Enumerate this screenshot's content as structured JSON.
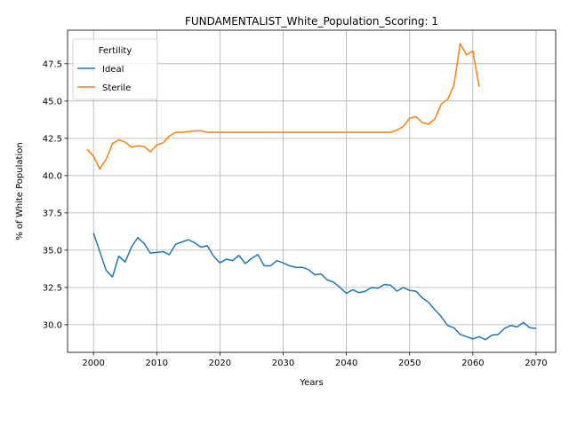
{
  "chart_data": {
    "type": "line",
    "title": "FUNDAMENTALIST_White_Population_Scoring: 1",
    "xlabel": "Years",
    "ylabel": "% of White Population",
    "xlim": [
      1995.9,
      2073.1
    ],
    "ylim": [
      28.15,
      49.75
    ],
    "xticks": [
      2000,
      2010,
      2020,
      2030,
      2040,
      2050,
      2060,
      2070
    ],
    "yticks": [
      30.0,
      32.5,
      35.0,
      37.5,
      40.0,
      42.5,
      45.0,
      47.5
    ],
    "grid": true,
    "legend": {
      "title": "Fertility",
      "position": "top-left"
    },
    "series": [
      {
        "name": "Ideal",
        "color": "#1f77b4",
        "x": [
          2000,
          2001,
          2002,
          2003,
          2004,
          2005,
          2006,
          2007,
          2008,
          2009,
          2010,
          2011,
          2012,
          2013,
          2014,
          2015,
          2016,
          2017,
          2018,
          2019,
          2020,
          2021,
          2022,
          2023,
          2024,
          2025,
          2026,
          2027,
          2028,
          2029,
          2030,
          2031,
          2032,
          2033,
          2034,
          2035,
          2036,
          2037,
          2038,
          2039,
          2040,
          2041,
          2042,
          2043,
          2044,
          2045,
          2046,
          2047,
          2048,
          2049,
          2050,
          2051,
          2052,
          2053,
          2054,
          2055,
          2056,
          2057,
          2058,
          2059,
          2060,
          2061,
          2062,
          2063,
          2064,
          2065,
          2066,
          2067,
          2068,
          2069,
          2070
        ],
        "values": [
          36.15,
          34.9,
          33.65,
          33.2,
          34.6,
          34.2,
          35.2,
          35.85,
          35.45,
          34.8,
          34.85,
          34.9,
          34.7,
          35.4,
          35.55,
          35.7,
          35.5,
          35.2,
          35.3,
          34.6,
          34.15,
          34.4,
          34.3,
          34.65,
          34.1,
          34.45,
          34.7,
          33.95,
          33.95,
          34.3,
          34.15,
          33.95,
          33.85,
          33.85,
          33.7,
          33.35,
          33.4,
          33.0,
          32.85,
          32.5,
          32.1,
          32.35,
          32.15,
          32.25,
          32.5,
          32.45,
          32.7,
          32.65,
          32.25,
          32.5,
          32.3,
          32.25,
          31.8,
          31.5,
          31.0,
          30.55,
          29.95,
          29.8,
          29.35,
          29.2,
          29.05,
          29.2,
          29.0,
          29.3,
          29.35,
          29.75,
          29.95,
          29.85,
          30.15,
          29.8,
          29.75
        ]
      },
      {
        "name": "Sterile",
        "color": "#ff7f0e",
        "x": [
          1999,
          2000,
          2001,
          2002,
          2003,
          2004,
          2005,
          2006,
          2007,
          2008,
          2009,
          2010,
          2011,
          2012,
          2013,
          2014,
          2015,
          2016,
          2017,
          2018,
          2019,
          2020,
          2021,
          2022,
          2023,
          2024,
          2025,
          2026,
          2027,
          2028,
          2029,
          2030,
          2031,
          2032,
          2033,
          2034,
          2035,
          2036,
          2037,
          2038,
          2039,
          2040,
          2041,
          2042,
          2043,
          2044,
          2045,
          2046,
          2047,
          2048,
          2049,
          2050,
          2051,
          2052,
          2053,
          2054,
          2055,
          2056,
          2057,
          2058,
          2059,
          2060,
          2061
        ],
        "values": [
          41.75,
          41.3,
          40.45,
          41.1,
          42.15,
          42.4,
          42.25,
          41.9,
          42.0,
          41.95,
          41.6,
          42.05,
          42.2,
          42.65,
          42.9,
          42.9,
          42.95,
          43.0,
          43.0,
          42.9,
          42.9,
          42.9,
          42.9,
          42.9,
          42.9,
          42.9,
          42.9,
          42.9,
          42.9,
          42.9,
          42.9,
          42.9,
          42.9,
          42.9,
          42.9,
          42.9,
          42.9,
          42.9,
          42.9,
          42.9,
          42.9,
          42.9,
          42.9,
          42.9,
          42.9,
          42.9,
          42.9,
          42.9,
          42.9,
          43.05,
          43.3,
          43.85,
          43.95,
          43.55,
          43.45,
          43.8,
          44.8,
          45.1,
          46.05,
          48.85,
          48.1,
          48.35,
          45.95
        ]
      }
    ]
  }
}
